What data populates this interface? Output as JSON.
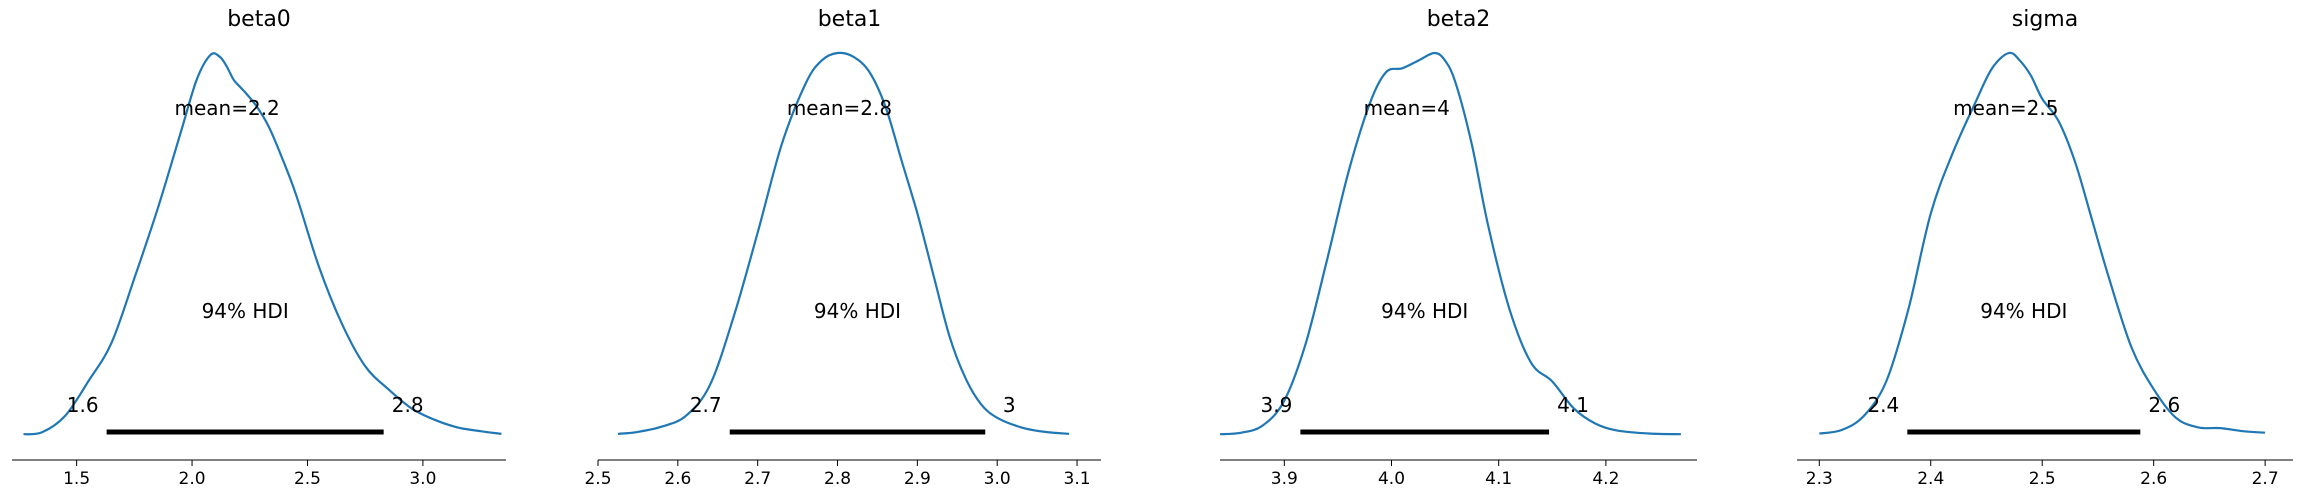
{
  "chart_data": [
    {
      "type": "density",
      "title": "beta0",
      "color": "#1f77b4",
      "xlim": [
        1.22,
        3.36
      ],
      "xticks": [
        1.5,
        2.0,
        2.5,
        3.0
      ],
      "xtick_labels": [
        "1.5",
        "2.0",
        "2.5",
        "3.0"
      ],
      "mean_label": "mean=2.2",
      "hdi_label": "94% HDI",
      "hdi": [
        1.63,
        2.83
      ],
      "hdi_low_label": "1.6",
      "hdi_high_label": "2.8",
      "curve": {
        "x": [
          1.27,
          1.35,
          1.45,
          1.55,
          1.65,
          1.75,
          1.85,
          1.95,
          2.02,
          2.08,
          2.12,
          2.15,
          2.18,
          2.21,
          2.24,
          2.28,
          2.33,
          2.38,
          2.45,
          2.55,
          2.65,
          2.75,
          2.85,
          2.95,
          3.05,
          3.15,
          3.25,
          3.34
        ],
        "y": [
          0.002,
          0.007,
          0.05,
          0.14,
          0.24,
          0.41,
          0.59,
          0.79,
          0.93,
          0.995,
          0.99,
          0.965,
          0.93,
          0.91,
          0.89,
          0.86,
          0.81,
          0.74,
          0.63,
          0.44,
          0.29,
          0.18,
          0.12,
          0.07,
          0.04,
          0.02,
          0.01,
          0.003
        ]
      }
    },
    {
      "type": "density",
      "title": "beta1",
      "color": "#1f77b4",
      "xlim": [
        2.5,
        3.13
      ],
      "xticks": [
        2.5,
        2.6,
        2.7,
        2.8,
        2.9,
        3.0,
        3.1
      ],
      "xtick_labels": [
        "2.5",
        "2.6",
        "2.7",
        "2.8",
        "2.9",
        "3.0",
        "3.1"
      ],
      "mean_label": "mean=2.8",
      "hdi_label": "94% HDI",
      "hdi": [
        2.665,
        2.985
      ],
      "hdi_low_label": "2.7",
      "hdi_high_label": "3",
      "curve": {
        "x": [
          2.525,
          2.55,
          2.58,
          2.61,
          2.64,
          2.67,
          2.7,
          2.73,
          2.76,
          2.78,
          2.8,
          2.82,
          2.84,
          2.86,
          2.88,
          2.9,
          2.92,
          2.94,
          2.96,
          2.98,
          3.0,
          3.03,
          3.06,
          3.09
        ],
        "y": [
          0.003,
          0.008,
          0.022,
          0.05,
          0.13,
          0.31,
          0.53,
          0.76,
          0.92,
          0.98,
          1.0,
          0.99,
          0.95,
          0.86,
          0.72,
          0.58,
          0.42,
          0.26,
          0.15,
          0.08,
          0.045,
          0.02,
          0.008,
          0.003
        ]
      }
    },
    {
      "type": "density",
      "title": "beta2",
      "color": "#1f77b4",
      "xlim": [
        3.84,
        4.285
      ],
      "xticks": [
        3.9,
        4.0,
        4.1,
        4.2
      ],
      "xtick_labels": [
        "3.9",
        "4.0",
        "4.1",
        "4.2"
      ],
      "mean_label": "mean=4",
      "hdi_label": "94% HDI",
      "hdi": [
        3.915,
        4.147
      ],
      "hdi_low_label": "3.9",
      "hdi_high_label": "4.1",
      "curve": {
        "x": [
          3.84,
          3.86,
          3.88,
          3.9,
          3.92,
          3.94,
          3.96,
          3.98,
          3.995,
          4.01,
          4.025,
          4.04,
          4.05,
          4.06,
          4.075,
          4.09,
          4.11,
          4.13,
          4.15,
          4.17,
          4.19,
          4.21,
          4.24,
          4.27
        ],
        "y": [
          0.002,
          0.006,
          0.025,
          0.09,
          0.24,
          0.46,
          0.69,
          0.87,
          0.95,
          0.96,
          0.98,
          1.0,
          0.98,
          0.92,
          0.76,
          0.55,
          0.33,
          0.19,
          0.14,
          0.07,
          0.03,
          0.012,
          0.004,
          0.002
        ]
      }
    },
    {
      "type": "density",
      "title": "sigma",
      "color": "#1f77b4",
      "xlim": [
        2.28,
        2.725
      ],
      "xticks": [
        2.3,
        2.4,
        2.5,
        2.6,
        2.7
      ],
      "xtick_labels": [
        "2.3",
        "2.4",
        "2.5",
        "2.6",
        "2.7"
      ],
      "mean_label": "mean=2.5",
      "hdi_label": "94% HDI",
      "hdi": [
        2.379,
        2.588
      ],
      "hdi_low_label": "2.4",
      "hdi_high_label": "2.6",
      "curve": {
        "x": [
          2.3,
          2.32,
          2.34,
          2.36,
          2.38,
          2.4,
          2.42,
          2.44,
          2.455,
          2.47,
          2.48,
          2.49,
          2.5,
          2.515,
          2.53,
          2.545,
          2.56,
          2.58,
          2.6,
          2.62,
          2.64,
          2.66,
          2.68,
          2.7
        ],
        "y": [
          0.004,
          0.013,
          0.05,
          0.14,
          0.33,
          0.58,
          0.74,
          0.87,
          0.96,
          1.0,
          0.98,
          0.94,
          0.88,
          0.82,
          0.71,
          0.56,
          0.41,
          0.23,
          0.12,
          0.045,
          0.02,
          0.018,
          0.01,
          0.006
        ]
      }
    }
  ]
}
